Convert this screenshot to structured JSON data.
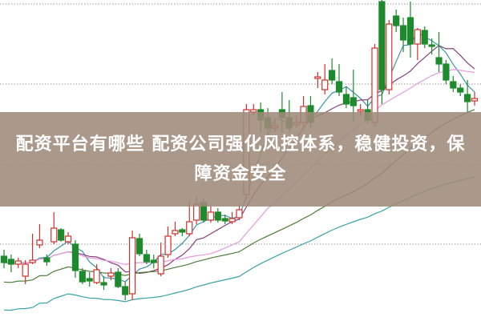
{
  "banner": {
    "title": "配资平台有哪些 配资公司强化风控体系，稳健投资，保障资金安全"
  },
  "chart_data": {
    "type": "candlestick",
    "title": "",
    "xlabel": "",
    "ylabel": "",
    "ylim": [
      0,
      400
    ],
    "grid": true,
    "grid_values": [
      95,
      195,
      295,
      395
    ],
    "up_color": "#d0312d",
    "down_color": "#1e8a2e",
    "ohlc": [
      [
        80,
        72,
        88,
        65
      ],
      [
        76,
        70,
        82,
        60
      ],
      [
        70,
        74,
        78,
        65
      ],
      [
        55,
        70,
        75,
        45
      ],
      [
        72,
        75,
        108,
        70
      ],
      [
        94,
        100,
        120,
        90
      ],
      [
        78,
        73,
        82,
        68
      ],
      [
        98,
        115,
        135,
        95
      ],
      [
        113,
        100,
        115,
        98
      ],
      [
        98,
        105,
        110,
        95
      ],
      [
        95,
        62,
        100,
        53
      ],
      [
        61,
        48,
        65,
        45
      ],
      [
        52,
        49,
        60,
        42
      ],
      [
        47,
        63,
        70,
        45
      ],
      [
        47,
        44,
        55,
        38
      ],
      [
        55,
        59,
        65,
        50
      ],
      [
        60,
        42,
        65,
        40
      ],
      [
        42,
        32,
        48,
        25
      ],
      [
        33,
        103,
        112,
        25
      ],
      [
        102,
        83,
        108,
        80
      ],
      [
        82,
        73,
        88,
        70
      ],
      [
        75,
        72,
        82,
        65
      ],
      [
        58,
        80,
        97,
        55
      ],
      [
        82,
        105,
        117,
        78
      ],
      [
        108,
        112,
        123,
        105
      ],
      [
        113,
        110,
        115,
        105
      ],
      [
        108,
        123,
        150,
        105
      ],
      [
        125,
        145,
        155,
        120
      ],
      [
        147,
        125,
        152,
        122
      ],
      [
        125,
        135,
        142,
        122
      ],
      [
        135,
        125,
        140,
        122
      ],
      [
        127,
        124,
        132,
        120
      ],
      [
        123,
        127,
        135,
        120
      ],
      [
        128,
        138,
        145,
        125
      ],
      [
        157,
        263,
        270,
        152
      ],
      [
        260,
        263,
        270,
        255
      ],
      [
        263,
        250,
        272,
        235
      ],
      [
        253,
        240,
        265,
        230
      ],
      [
        240,
        243,
        250,
        235
      ],
      [
        263,
        253,
        285,
        235
      ],
      [
        253,
        240,
        275,
        235
      ],
      [
        244,
        247,
        255,
        240
      ],
      [
        247,
        267,
        280,
        240
      ],
      [
        268,
        247,
        280,
        240
      ],
      [
        302,
        304,
        310,
        290
      ],
      [
        288,
        300,
        320,
        282
      ],
      [
        312,
        300,
        327,
        295
      ],
      [
        298,
        285,
        320,
        280
      ],
      [
        282,
        270,
        292,
        265
      ],
      [
        278,
        268,
        313,
        248
      ],
      [
        261,
        263,
        270,
        255
      ],
      [
        263,
        250,
        275,
        245
      ],
      [
        247,
        340,
        345,
        242
      ],
      [
        398,
        288,
        400,
        270
      ],
      [
        288,
        370,
        375,
        282
      ],
      [
        380,
        368,
        388,
        360
      ],
      [
        368,
        350,
        378,
        335
      ],
      [
        378,
        345,
        398,
        328
      ],
      [
        345,
        363,
        365,
        325
      ],
      [
        362,
        345,
        367,
        340
      ],
      [
        344,
        342,
        352,
        332
      ],
      [
        328,
        320,
        360,
        310
      ],
      [
        320,
        300,
        325,
        295
      ],
      [
        298,
        290,
        305,
        285
      ],
      [
        290,
        285,
        295,
        280
      ],
      [
        282,
        273,
        300,
        258
      ],
      [
        274,
        277,
        285,
        268
      ]
    ],
    "moving_averages": [
      {
        "period": 5,
        "color": "#3f93a8"
      },
      {
        "period": 10,
        "color": "#8a3f7c"
      },
      {
        "period": 20,
        "color": "#e49be0"
      },
      {
        "period": 40,
        "color": "#4f7d3c"
      },
      {
        "period": 80,
        "color": "#3aa3a6"
      }
    ]
  }
}
